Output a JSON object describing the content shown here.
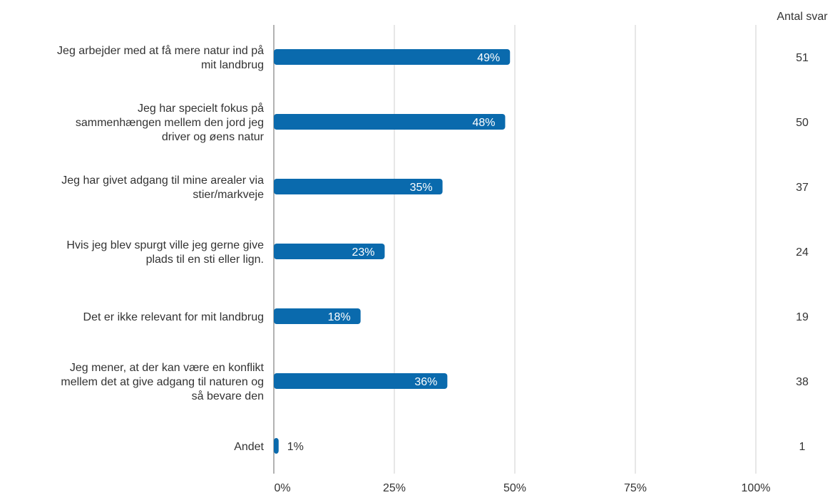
{
  "chart_data": {
    "type": "bar",
    "orientation": "horizontal",
    "categories": [
      [
        "Jeg arbejder med at få mere natur ind på",
        "mit landbrug"
      ],
      [
        "Jeg har specielt fokus på",
        "sammenhængen mellem den jord jeg",
        "driver og øens natur"
      ],
      [
        "Jeg har givet adgang til mine arealer via",
        "stier/markveje"
      ],
      [
        "Hvis jeg blev spurgt ville jeg gerne give",
        "plads til en sti eller lign."
      ],
      [
        "Det er ikke relevant for mit landbrug"
      ],
      [
        "Jeg mener, at der kan være en konflikt",
        "mellem det at give adgang  til naturen og",
        "så bevare den"
      ],
      [
        "Andet"
      ]
    ],
    "values": [
      49,
      48,
      35,
      23,
      18,
      36,
      1
    ],
    "value_labels": [
      "49%",
      "48%",
      "35%",
      "23%",
      "18%",
      "36%",
      "1%"
    ],
    "counts_header": "Antal svar",
    "counts": [
      "51",
      "50",
      "37",
      "24",
      "19",
      "38",
      "1"
    ],
    "xlim": [
      0,
      100
    ],
    "xticks": [
      0,
      25,
      50,
      75,
      100
    ],
    "xtick_labels": [
      "0%",
      "25%",
      "50%",
      "75%",
      "100%"
    ],
    "grid": "vertical",
    "colors": {
      "bar": "#0a6aad",
      "bar_label": "#ffffff",
      "outside_label": "#333333",
      "grid": "#cfcfcf",
      "axis": "#999999",
      "text": "#333333"
    }
  }
}
